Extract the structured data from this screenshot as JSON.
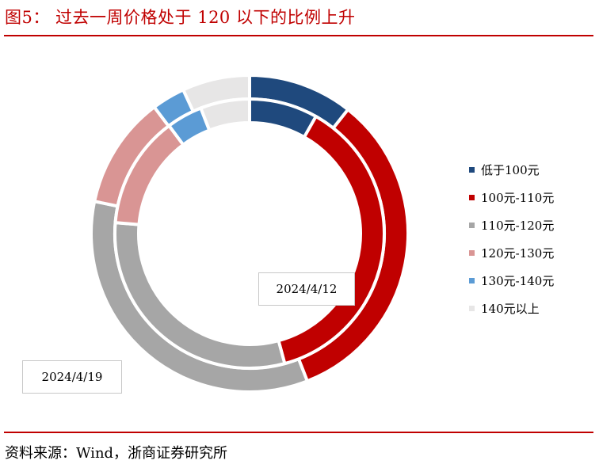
{
  "header": {
    "title": "图5：  过去一周价格处于 120 以下的比例上升"
  },
  "footer": {
    "source": "资料来源：Wind，浙商证券研究所"
  },
  "chart_data": {
    "type": "doughnut",
    "categories": [
      "低于100元",
      "100元-110元",
      "110元-120元",
      "120元-130元",
      "130元-140元",
      "140元以上"
    ],
    "colors": [
      "#1f497d",
      "#c00000",
      "#a6a6a6",
      "#d99594",
      "#5b9bd5",
      "#e7e6e6"
    ],
    "series": [
      {
        "name": "2024/4/19",
        "ring": "outer",
        "values": [
          10.7,
          33.5,
          34.3,
          11.5,
          3.4,
          6.9
        ]
      },
      {
        "name": "2024/4/12",
        "ring": "inner",
        "values": [
          8.2,
          37.6,
          30.5,
          13.5,
          4.3,
          5.9
        ]
      }
    ]
  }
}
